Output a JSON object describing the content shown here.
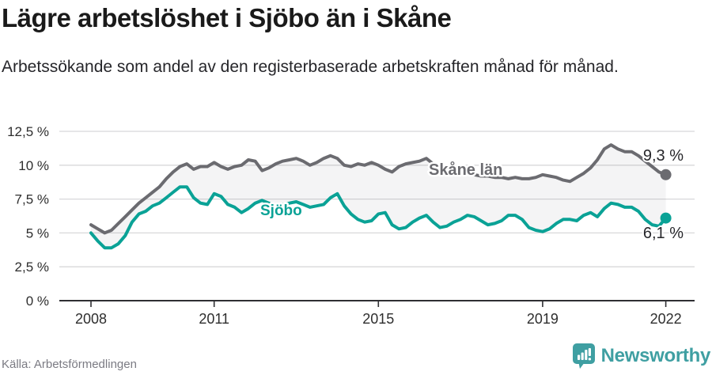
{
  "header": {
    "title": "Lägre arbetslöshet i Sjöbo än i Skåne",
    "subtitle": "Arbetssökande som andel av den registerbaserade arbetskraften månad för månad."
  },
  "chart_data": {
    "type": "line",
    "title": "Lägre arbetslöshet i Sjöbo än i Skåne",
    "subtitle": "Arbetssökande som andel av den registerbaserade arbetskraften månad för månad.",
    "unit": "%",
    "grid": true,
    "x_start_year": 2008.0,
    "x_end_year": 2022.0,
    "points_per_year": 6,
    "x_tick_years": [
      2008,
      2011,
      2015,
      2019,
      2022
    ],
    "x_tick_labels": [
      "2008",
      "2011",
      "2015",
      "2019",
      "2022"
    ],
    "y_ticks": [
      12.5,
      10,
      7.5,
      5,
      2.5,
      0
    ],
    "y_tick_labels": [
      "12,5 %",
      "10 %",
      "7,5 %",
      "5 %",
      "2,5 %",
      "0 %"
    ],
    "ylim": [
      0,
      13
    ],
    "band_fill_between_series": true,
    "legend_position": "inline-labels",
    "series": [
      {
        "name": "Skåne län",
        "color": "#6b6b70",
        "end_label": "9,3 %",
        "end_value": 9.3,
        "values": [
          5.6,
          5.3,
          5.0,
          5.2,
          5.7,
          6.2,
          6.7,
          7.2,
          7.6,
          8.0,
          8.4,
          9.0,
          9.5,
          9.9,
          10.1,
          9.7,
          9.9,
          9.9,
          10.2,
          9.9,
          9.7,
          9.9,
          10.0,
          10.4,
          10.3,
          9.6,
          9.8,
          10.1,
          10.3,
          10.4,
          10.5,
          10.3,
          10.0,
          10.2,
          10.5,
          10.7,
          10.5,
          10.0,
          9.9,
          10.1,
          10.0,
          10.2,
          10.0,
          9.7,
          9.5,
          9.9,
          10.1,
          10.2,
          10.3,
          10.5,
          10.1,
          9.9,
          9.7,
          9.6,
          9.5,
          9.4,
          9.3,
          9.2,
          9.2,
          9.1,
          9.1,
          9.0,
          9.1,
          9.0,
          9.0,
          9.1,
          9.3,
          9.2,
          9.1,
          8.9,
          8.8,
          9.1,
          9.4,
          9.8,
          10.4,
          11.2,
          11.5,
          11.2,
          11.0,
          11.0,
          10.7,
          10.3,
          9.9,
          9.5,
          9.3
        ]
      },
      {
        "name": "Sjöbo",
        "color": "#0aa296",
        "end_label": "6,1 %",
        "end_value": 6.1,
        "values": [
          5.0,
          4.4,
          3.9,
          3.9,
          4.2,
          4.8,
          5.8,
          6.4,
          6.6,
          7.0,
          7.2,
          7.6,
          8.0,
          8.4,
          8.4,
          7.6,
          7.2,
          7.1,
          7.9,
          7.7,
          7.1,
          6.9,
          6.5,
          6.8,
          7.2,
          7.4,
          7.2,
          7.0,
          7.1,
          7.2,
          7.3,
          7.1,
          6.9,
          7.0,
          7.1,
          7.6,
          7.9,
          7.0,
          6.4,
          6.0,
          5.8,
          5.9,
          6.4,
          6.5,
          5.6,
          5.3,
          5.4,
          5.8,
          6.1,
          6.3,
          5.8,
          5.4,
          5.5,
          5.8,
          6.0,
          6.3,
          6.2,
          5.9,
          5.6,
          5.7,
          5.9,
          6.3,
          6.3,
          6.0,
          5.4,
          5.2,
          5.1,
          5.3,
          5.7,
          6.0,
          6.0,
          5.9,
          6.3,
          6.5,
          6.2,
          6.8,
          7.2,
          7.1,
          6.9,
          6.9,
          6.6,
          6.0,
          5.6,
          5.5,
          6.1
        ]
      }
    ]
  },
  "footer": {
    "source": "Källa: Arbetsförmedlingen",
    "brand": "Newsworthy"
  },
  "colors": {
    "skane_line": "#6b6b70",
    "sjobo_line": "#0aa296",
    "band_fill": "rgba(120,120,130,0.08)",
    "gridline": "#d8d8da",
    "axis": "#2f2f33",
    "axis_text": "#2e2e2e",
    "title_text": "#1a1a1a",
    "source_text": "#7b7b83",
    "brand_teal": "#3f9fa2"
  }
}
